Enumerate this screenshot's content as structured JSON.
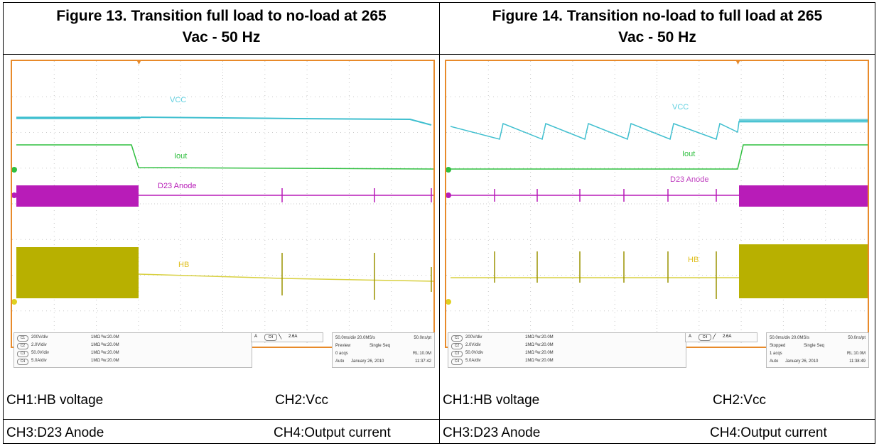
{
  "figures": [
    {
      "title_line1": "Figure 13. Transition full load to no-load at 265",
      "title_line2": "Vac - 50 Hz",
      "trace_labels": {
        "vcc": "VCC",
        "iout": "Iout",
        "d23": "D23 Anode",
        "hb": "HB"
      },
      "channels": [
        {
          "tag": "C1",
          "vdiv": "200V/div",
          "imp": "1MΩ ᴮw:20.0M"
        },
        {
          "tag": "C2",
          "vdiv": "2.0V/div",
          "imp": "1MΩ ᴮw:20.0M"
        },
        {
          "tag": "C3",
          "vdiv": "50.0V/div",
          "imp": "1MΩ ᴮw:20.0M"
        },
        {
          "tag": "C4",
          "vdiv": "5.0A/div",
          "imp": "1MΩ ᴮw:20.0M"
        }
      ],
      "trigger": {
        "a": "A",
        "src": "C4",
        "slope": "╲",
        "level": "2.6A"
      },
      "acq": {
        "timebase": "50.0ms/div 20.0MS/s",
        "pt": "50.0ns/pt",
        "state": "Preview",
        "mode": "Single Seq",
        "acqs": "0 acqs",
        "rl": "RL:10.0M",
        "auto": "Auto",
        "date": "January 26, 2010",
        "time": "11:37:42"
      },
      "captions": {
        "c1": "CH1:HB voltage",
        "c2": "CH2:Vcc",
        "c3": "CH3:D23 Anode",
        "c4": "CH4:Output current"
      }
    },
    {
      "title_line1": "Figure 14. Transition no-load to full load at 265",
      "title_line2": "Vac - 50 Hz",
      "trace_labels": {
        "vcc": "VCC",
        "iout": "Iout",
        "d23": "D23 Anode",
        "hb": "HB"
      },
      "channels": [
        {
          "tag": "C1",
          "vdiv": "200V/div",
          "imp": "1MΩ ᴮw:20.0M"
        },
        {
          "tag": "C2",
          "vdiv": "2.0V/div",
          "imp": "1MΩ ᴮw:20.0M"
        },
        {
          "tag": "C3",
          "vdiv": "50.0V/div",
          "imp": "1MΩ ᴮw:20.0M"
        },
        {
          "tag": "C4",
          "vdiv": "5.0A/div",
          "imp": "1MΩ ᴮw:20.0M"
        }
      ],
      "trigger": {
        "a": "A",
        "src": "C4",
        "slope": "╱",
        "level": "2.6A"
      },
      "acq": {
        "timebase": "50.0ms/div 20.0MS/s",
        "pt": "50.0ns/pt",
        "state": "Stopped",
        "mode": "Single Seq",
        "acqs": "1 acqs",
        "rl": "RL:10.0M",
        "auto": "Auto",
        "date": "January 26, 2010",
        "time": "11:38:49"
      },
      "captions": {
        "c1": "CH1:HB voltage",
        "c2": "CH2:Vcc",
        "c3": "CH3:D23 Anode",
        "c4": "CH4:Output current"
      }
    }
  ],
  "colors": {
    "vcc": "#3fbfcf",
    "iout": "#2fbf3f",
    "d23": "#b81cb8",
    "hb": "#b8b000",
    "hb_label": "#e0c020",
    "frame": "#e88a2a",
    "grid": "#c8c8c8"
  }
}
